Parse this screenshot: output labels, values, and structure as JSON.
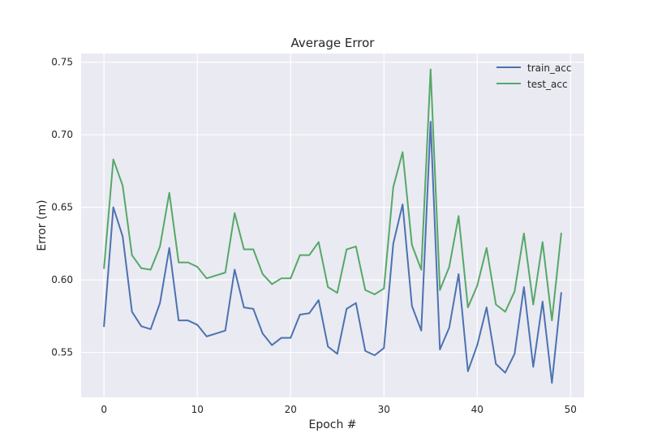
{
  "chart_data": {
    "type": "line",
    "title": "Average Error",
    "xlabel": "Epoch #",
    "ylabel": "Error (m)",
    "xlim": [
      -2.45,
      51.45
    ],
    "ylim": [
      0.519,
      0.756
    ],
    "xticks": [
      0,
      10,
      20,
      30,
      40,
      50
    ],
    "yticks": [
      0.55,
      0.6,
      0.65,
      0.7,
      0.75
    ],
    "ytick_labels": [
      "0.55",
      "0.60",
      "0.65",
      "0.70",
      "0.75"
    ],
    "grid": true,
    "legend_position": "top-right",
    "x": [
      0,
      1,
      2,
      3,
      4,
      5,
      6,
      7,
      8,
      9,
      10,
      11,
      12,
      13,
      14,
      15,
      16,
      17,
      18,
      19,
      20,
      21,
      22,
      23,
      24,
      25,
      26,
      27,
      28,
      29,
      30,
      31,
      32,
      33,
      34,
      35,
      36,
      37,
      38,
      39,
      40,
      41,
      42,
      43,
      44,
      45,
      46,
      47,
      48,
      49
    ],
    "series": [
      {
        "name": "train_acc",
        "color": "#4c72b0",
        "values": [
          0.568,
          0.65,
          0.63,
          0.578,
          0.568,
          0.566,
          0.584,
          0.622,
          0.572,
          0.572,
          0.569,
          0.561,
          0.563,
          0.565,
          0.607,
          0.581,
          0.58,
          0.563,
          0.555,
          0.56,
          0.56,
          0.576,
          0.577,
          0.586,
          0.554,
          0.549,
          0.58,
          0.584,
          0.551,
          0.548,
          0.553,
          0.625,
          0.652,
          0.582,
          0.565,
          0.709,
          0.552,
          0.567,
          0.604,
          0.537,
          0.555,
          0.581,
          0.542,
          0.536,
          0.549,
          0.595,
          0.54,
          0.585,
          0.529,
          0.591
        ]
      },
      {
        "name": "test_acc",
        "color": "#55a868",
        "values": [
          0.608,
          0.683,
          0.665,
          0.617,
          0.608,
          0.607,
          0.623,
          0.66,
          0.612,
          0.612,
          0.609,
          0.601,
          0.603,
          0.605,
          0.646,
          0.621,
          0.621,
          0.604,
          0.597,
          0.601,
          0.601,
          0.617,
          0.617,
          0.626,
          0.595,
          0.591,
          0.621,
          0.623,
          0.593,
          0.59,
          0.594,
          0.664,
          0.688,
          0.624,
          0.607,
          0.745,
          0.593,
          0.609,
          0.644,
          0.581,
          0.596,
          0.622,
          0.583,
          0.578,
          0.592,
          0.632,
          0.583,
          0.626,
          0.572,
          0.632
        ]
      }
    ]
  }
}
